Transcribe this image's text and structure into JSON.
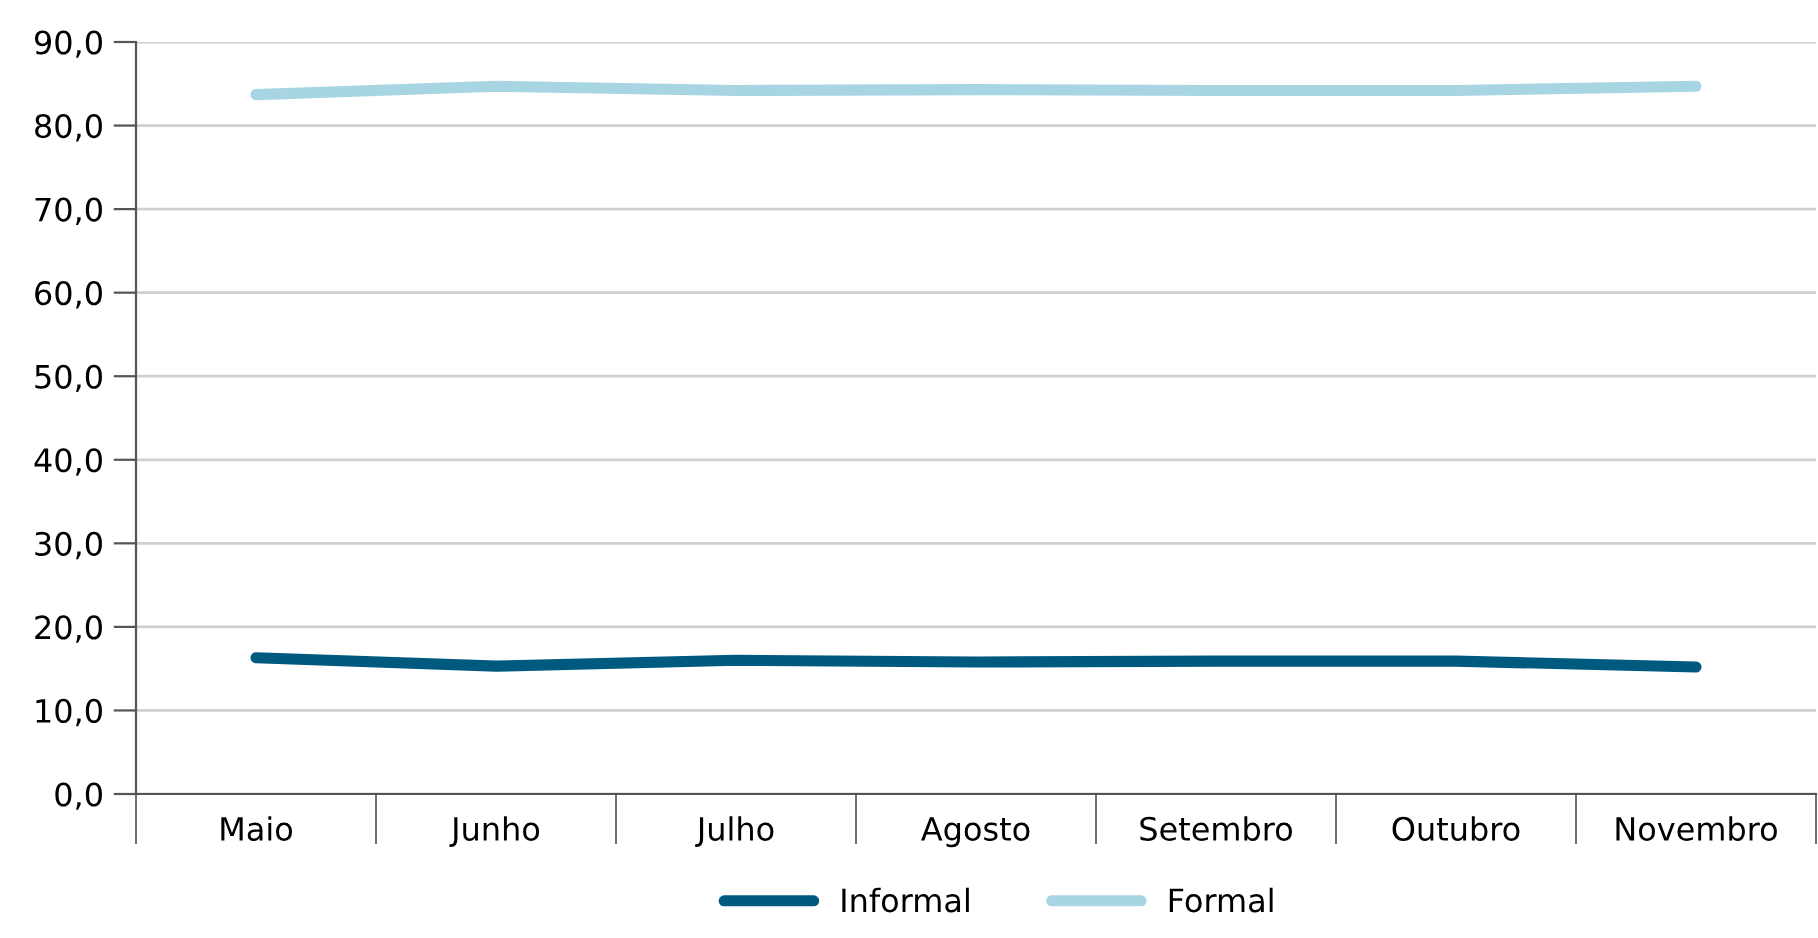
{
  "chart_data": {
    "type": "line",
    "categories": [
      "Maio",
      "Junho",
      "Julho",
      "Agosto",
      "Setembro",
      "Outubro",
      "Novembro"
    ],
    "series": [
      {
        "name": "Informal",
        "color": "#005a80",
        "values": [
          16.3,
          15.3,
          16.0,
          15.8,
          15.9,
          15.9,
          15.2
        ]
      },
      {
        "name": "Formal",
        "color": "#a8d5e2",
        "values": [
          83.7,
          84.7,
          84.2,
          84.3,
          84.2,
          84.2,
          84.7
        ]
      }
    ],
    "ylim": [
      0,
      90
    ],
    "yticks": [
      {
        "value": 0,
        "label": "0,0"
      },
      {
        "value": 10,
        "label": "10,0"
      },
      {
        "value": 20,
        "label": "20,0"
      },
      {
        "value": 30,
        "label": "30,0"
      },
      {
        "value": 40,
        "label": "40,0"
      },
      {
        "value": 50,
        "label": "50,0"
      },
      {
        "value": 60,
        "label": "60,0"
      },
      {
        "value": 70,
        "label": "70,0"
      },
      {
        "value": 80,
        "label": "80,0"
      },
      {
        "value": 90,
        "label": "90,0"
      }
    ],
    "grid": "y",
    "legend": "bottom",
    "marker": "none",
    "line_style": "solid"
  }
}
